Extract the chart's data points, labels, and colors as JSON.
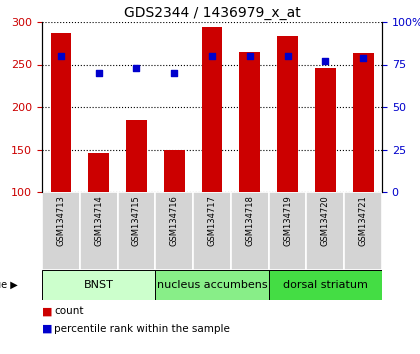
{
  "title": "GDS2344 / 1436979_x_at",
  "samples": [
    "GSM134713",
    "GSM134714",
    "GSM134715",
    "GSM134716",
    "GSM134717",
    "GSM134718",
    "GSM134719",
    "GSM134720",
    "GSM134721"
  ],
  "counts": [
    287,
    146,
    185,
    150,
    294,
    265,
    283,
    246,
    264
  ],
  "percentile_ranks": [
    80,
    70,
    73,
    70,
    80,
    80,
    80,
    77,
    79
  ],
  "ylim_left": [
    100,
    300
  ],
  "ylim_right": [
    0,
    100
  ],
  "yticks_left": [
    100,
    150,
    200,
    250,
    300
  ],
  "yticks_right": [
    0,
    25,
    50,
    75,
    100
  ],
  "bar_color": "#cc0000",
  "dot_color": "#0000cc",
  "bar_width": 0.55,
  "tissue_groups": [
    {
      "label": "BNST",
      "start": 0,
      "end": 3,
      "color": "#ccffcc"
    },
    {
      "label": "nucleus accumbens",
      "start": 3,
      "end": 6,
      "color": "#88ee88"
    },
    {
      "label": "dorsal striatum",
      "start": 6,
      "end": 9,
      "color": "#44dd44"
    }
  ],
  "sample_box_color": "#cccccc",
  "sample_box_edge": "#ffffff",
  "grid_linestyle": "dotted",
  "title_fontsize": 10,
  "tick_fontsize": 8,
  "sample_fontsize": 6,
  "tissue_fontsize": 8,
  "legend_fontsize": 7.5,
  "right_tick_label": [
    "0",
    "25",
    "50",
    "75",
    "100%"
  ]
}
